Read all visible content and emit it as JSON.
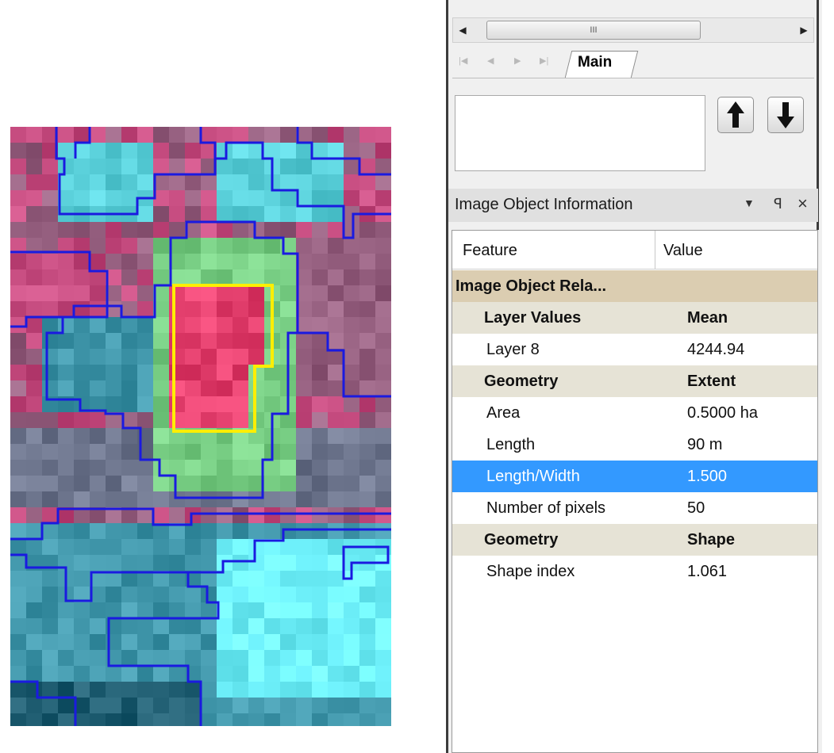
{
  "scrollbar": {
    "thumb_grip": "III",
    "left_arrow": "◀",
    "right_arrow": "▶"
  },
  "tabs": {
    "nav": [
      "|◀",
      "◀",
      "▶",
      "▶|"
    ],
    "active": "Main"
  },
  "info_panel": {
    "title": "Image Object Information",
    "controls": {
      "dropdown": "▼",
      "pin": "ꟼ",
      "close": "×"
    },
    "columns": {
      "feature": "Feature",
      "value": "Value"
    },
    "rows": [
      {
        "type": "root",
        "feature": "Image Object Rela...",
        "value": ""
      },
      {
        "type": "group",
        "feature": "Layer Values",
        "value": "Mean"
      },
      {
        "type": "item",
        "feature": "Layer 8",
        "value": "4244.94"
      },
      {
        "type": "group",
        "feature": "Geometry",
        "value": "Extent"
      },
      {
        "type": "item",
        "feature": "Area",
        "value": "0.5000 ha"
      },
      {
        "type": "item",
        "feature": "Length",
        "value": "90 m"
      },
      {
        "type": "item",
        "feature": "Length/Width",
        "value": "1.500",
        "selected": true
      },
      {
        "type": "item",
        "feature": "Number of pixels",
        "value": "50"
      },
      {
        "type": "group",
        "feature": "Geometry",
        "value": "Shape"
      },
      {
        "type": "item",
        "feature": "Shape index",
        "value": "1.061"
      }
    ]
  },
  "colors": {
    "selection": "#3399ff",
    "segment_boundary": "#1a1ae0",
    "selected_object_outline": "#ffee00"
  }
}
